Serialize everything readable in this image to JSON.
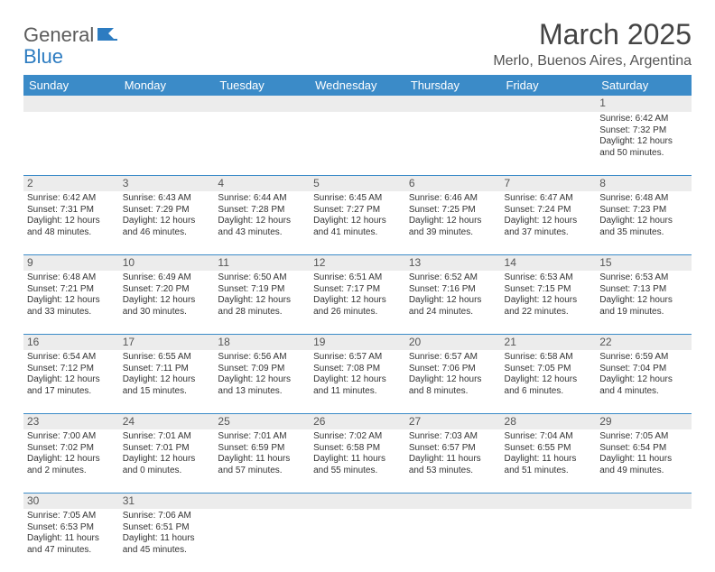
{
  "brand": {
    "part1": "General",
    "part2": "Blue"
  },
  "title": "March 2025",
  "location": "Merlo, Buenos Aires, Argentina",
  "colors": {
    "header_bg": "#3b8bc8",
    "header_text": "#ffffff",
    "daynum_bg": "#ececec",
    "cell_border": "#3b8bc8",
    "brand_gray": "#5b5b5b",
    "brand_blue": "#2d7cc1"
  },
  "weekdays": [
    "Sunday",
    "Monday",
    "Tuesday",
    "Wednesday",
    "Thursday",
    "Friday",
    "Saturday"
  ],
  "weeks": [
    [
      null,
      null,
      null,
      null,
      null,
      null,
      {
        "n": "1",
        "sr": "Sunrise: 6:42 AM",
        "ss": "Sunset: 7:32 PM",
        "d1": "Daylight: 12 hours",
        "d2": "and 50 minutes."
      }
    ],
    [
      {
        "n": "2",
        "sr": "Sunrise: 6:42 AM",
        "ss": "Sunset: 7:31 PM",
        "d1": "Daylight: 12 hours",
        "d2": "and 48 minutes."
      },
      {
        "n": "3",
        "sr": "Sunrise: 6:43 AM",
        "ss": "Sunset: 7:29 PM",
        "d1": "Daylight: 12 hours",
        "d2": "and 46 minutes."
      },
      {
        "n": "4",
        "sr": "Sunrise: 6:44 AM",
        "ss": "Sunset: 7:28 PM",
        "d1": "Daylight: 12 hours",
        "d2": "and 43 minutes."
      },
      {
        "n": "5",
        "sr": "Sunrise: 6:45 AM",
        "ss": "Sunset: 7:27 PM",
        "d1": "Daylight: 12 hours",
        "d2": "and 41 minutes."
      },
      {
        "n": "6",
        "sr": "Sunrise: 6:46 AM",
        "ss": "Sunset: 7:25 PM",
        "d1": "Daylight: 12 hours",
        "d2": "and 39 minutes."
      },
      {
        "n": "7",
        "sr": "Sunrise: 6:47 AM",
        "ss": "Sunset: 7:24 PM",
        "d1": "Daylight: 12 hours",
        "d2": "and 37 minutes."
      },
      {
        "n": "8",
        "sr": "Sunrise: 6:48 AM",
        "ss": "Sunset: 7:23 PM",
        "d1": "Daylight: 12 hours",
        "d2": "and 35 minutes."
      }
    ],
    [
      {
        "n": "9",
        "sr": "Sunrise: 6:48 AM",
        "ss": "Sunset: 7:21 PM",
        "d1": "Daylight: 12 hours",
        "d2": "and 33 minutes."
      },
      {
        "n": "10",
        "sr": "Sunrise: 6:49 AM",
        "ss": "Sunset: 7:20 PM",
        "d1": "Daylight: 12 hours",
        "d2": "and 30 minutes."
      },
      {
        "n": "11",
        "sr": "Sunrise: 6:50 AM",
        "ss": "Sunset: 7:19 PM",
        "d1": "Daylight: 12 hours",
        "d2": "and 28 minutes."
      },
      {
        "n": "12",
        "sr": "Sunrise: 6:51 AM",
        "ss": "Sunset: 7:17 PM",
        "d1": "Daylight: 12 hours",
        "d2": "and 26 minutes."
      },
      {
        "n": "13",
        "sr": "Sunrise: 6:52 AM",
        "ss": "Sunset: 7:16 PM",
        "d1": "Daylight: 12 hours",
        "d2": "and 24 minutes."
      },
      {
        "n": "14",
        "sr": "Sunrise: 6:53 AM",
        "ss": "Sunset: 7:15 PM",
        "d1": "Daylight: 12 hours",
        "d2": "and 22 minutes."
      },
      {
        "n": "15",
        "sr": "Sunrise: 6:53 AM",
        "ss": "Sunset: 7:13 PM",
        "d1": "Daylight: 12 hours",
        "d2": "and 19 minutes."
      }
    ],
    [
      {
        "n": "16",
        "sr": "Sunrise: 6:54 AM",
        "ss": "Sunset: 7:12 PM",
        "d1": "Daylight: 12 hours",
        "d2": "and 17 minutes."
      },
      {
        "n": "17",
        "sr": "Sunrise: 6:55 AM",
        "ss": "Sunset: 7:11 PM",
        "d1": "Daylight: 12 hours",
        "d2": "and 15 minutes."
      },
      {
        "n": "18",
        "sr": "Sunrise: 6:56 AM",
        "ss": "Sunset: 7:09 PM",
        "d1": "Daylight: 12 hours",
        "d2": "and 13 minutes."
      },
      {
        "n": "19",
        "sr": "Sunrise: 6:57 AM",
        "ss": "Sunset: 7:08 PM",
        "d1": "Daylight: 12 hours",
        "d2": "and 11 minutes."
      },
      {
        "n": "20",
        "sr": "Sunrise: 6:57 AM",
        "ss": "Sunset: 7:06 PM",
        "d1": "Daylight: 12 hours",
        "d2": "and 8 minutes."
      },
      {
        "n": "21",
        "sr": "Sunrise: 6:58 AM",
        "ss": "Sunset: 7:05 PM",
        "d1": "Daylight: 12 hours",
        "d2": "and 6 minutes."
      },
      {
        "n": "22",
        "sr": "Sunrise: 6:59 AM",
        "ss": "Sunset: 7:04 PM",
        "d1": "Daylight: 12 hours",
        "d2": "and 4 minutes."
      }
    ],
    [
      {
        "n": "23",
        "sr": "Sunrise: 7:00 AM",
        "ss": "Sunset: 7:02 PM",
        "d1": "Daylight: 12 hours",
        "d2": "and 2 minutes."
      },
      {
        "n": "24",
        "sr": "Sunrise: 7:01 AM",
        "ss": "Sunset: 7:01 PM",
        "d1": "Daylight: 12 hours",
        "d2": "and 0 minutes."
      },
      {
        "n": "25",
        "sr": "Sunrise: 7:01 AM",
        "ss": "Sunset: 6:59 PM",
        "d1": "Daylight: 11 hours",
        "d2": "and 57 minutes."
      },
      {
        "n": "26",
        "sr": "Sunrise: 7:02 AM",
        "ss": "Sunset: 6:58 PM",
        "d1": "Daylight: 11 hours",
        "d2": "and 55 minutes."
      },
      {
        "n": "27",
        "sr": "Sunrise: 7:03 AM",
        "ss": "Sunset: 6:57 PM",
        "d1": "Daylight: 11 hours",
        "d2": "and 53 minutes."
      },
      {
        "n": "28",
        "sr": "Sunrise: 7:04 AM",
        "ss": "Sunset: 6:55 PM",
        "d1": "Daylight: 11 hours",
        "d2": "and 51 minutes."
      },
      {
        "n": "29",
        "sr": "Sunrise: 7:05 AM",
        "ss": "Sunset: 6:54 PM",
        "d1": "Daylight: 11 hours",
        "d2": "and 49 minutes."
      }
    ],
    [
      {
        "n": "30",
        "sr": "Sunrise: 7:05 AM",
        "ss": "Sunset: 6:53 PM",
        "d1": "Daylight: 11 hours",
        "d2": "and 47 minutes."
      },
      {
        "n": "31",
        "sr": "Sunrise: 7:06 AM",
        "ss": "Sunset: 6:51 PM",
        "d1": "Daylight: 11 hours",
        "d2": "and 45 minutes."
      },
      null,
      null,
      null,
      null,
      null
    ]
  ]
}
